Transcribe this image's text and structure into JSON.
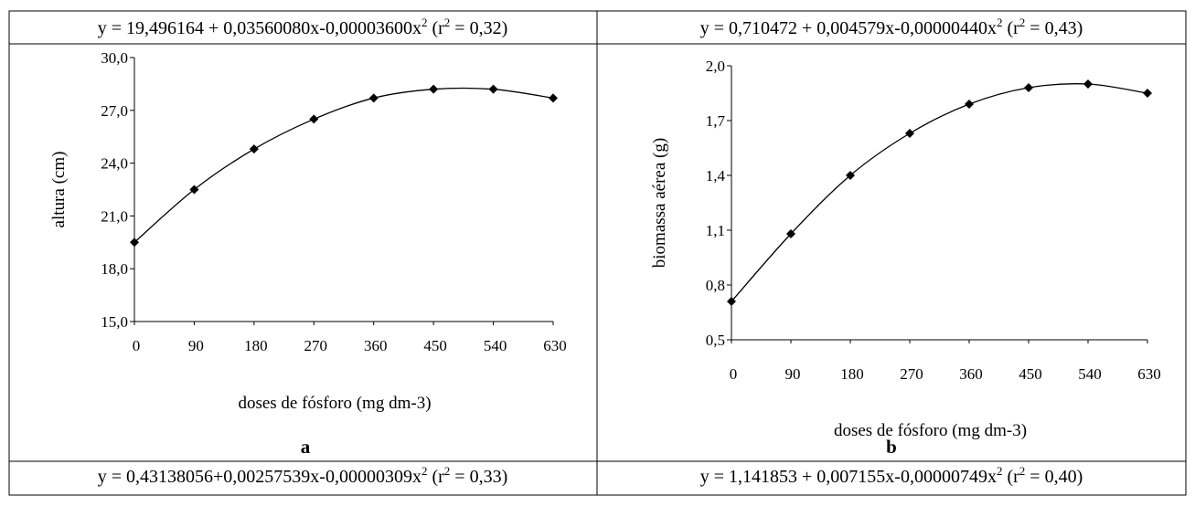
{
  "cells": [
    {
      "equation": [
        "y = 19,496164 + 0,03560080x-0,00003600x",
        "2",
        " (r",
        "2",
        " = 0,32)"
      ],
      "label": "a"
    },
    {
      "equation": [
        "y = 0,710472 + 0,004579x-0,00000440x",
        "2",
        " (r",
        "2",
        " = 0,43)"
      ],
      "label": "b"
    }
  ],
  "bottom_row": [
    {
      "equation": [
        "y = 0,43138056+0,00257539x-0,00000309x",
        "2",
        " (r",
        "2",
        " = 0,33)"
      ]
    },
    {
      "equation": [
        "y = 1,141853 + 0,007155x-0,00000749x",
        "2",
        " (r",
        "2",
        " = 0,40)"
      ]
    }
  ],
  "chart_data": [
    {
      "type": "line",
      "y_label": "altura (cm)",
      "x_label": "doses de fósforo (mg dm-3)",
      "x": [
        0,
        90,
        180,
        270,
        360,
        450,
        540,
        630
      ],
      "series": [
        {
          "color": "#000000",
          "values": [
            19.5,
            22.5,
            24.8,
            26.5,
            27.7,
            28.2,
            28.2,
            27.7
          ]
        }
      ],
      "xlim": [
        0,
        630
      ],
      "xticks": [
        0,
        90,
        180,
        270,
        360,
        450,
        540,
        630
      ],
      "ylim": [
        15,
        30
      ],
      "yticks": [
        {
          "value": 15,
          "label": "15,0"
        },
        {
          "value": 18,
          "label": "18,0"
        },
        {
          "value": 21,
          "label": "21,0"
        },
        {
          "value": 24,
          "label": "24,0"
        },
        {
          "value": 27,
          "label": "27,0"
        },
        {
          "value": 30,
          "label": "30,0"
        }
      ]
    },
    {
      "type": "line",
      "y_label": "biomassa aérea (g)",
      "x_label": "doses de fósforo (mg dm-3)",
      "x": [
        0,
        90,
        180,
        270,
        360,
        450,
        540,
        630
      ],
      "series": [
        {
          "color": "#000000",
          "values": [
            0.71,
            1.08,
            1.4,
            1.63,
            1.79,
            1.88,
            1.9,
            1.85
          ]
        }
      ],
      "xlim": [
        0,
        630
      ],
      "xticks": [
        0,
        90,
        180,
        270,
        360,
        450,
        540,
        630
      ],
      "ylim": [
        0.5,
        2.0
      ],
      "yticks": [
        {
          "value": 0.5,
          "label": "0,5"
        },
        {
          "value": 0.8,
          "label": "0,8"
        },
        {
          "value": 1.1,
          "label": "1,1"
        },
        {
          "value": 1.4,
          "label": "1,4"
        },
        {
          "value": 1.7,
          "label": "1,7"
        },
        {
          "value": 2.0,
          "label": "2,0"
        }
      ]
    }
  ]
}
